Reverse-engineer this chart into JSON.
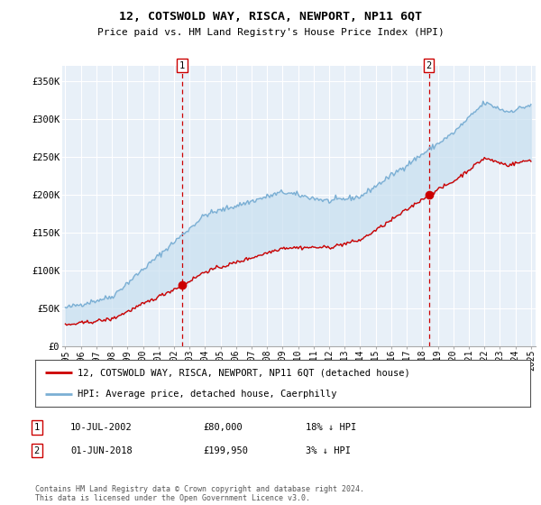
{
  "title": "12, COTSWOLD WAY, RISCA, NEWPORT, NP11 6QT",
  "subtitle": "Price paid vs. HM Land Registry's House Price Index (HPI)",
  "ylabel_ticks": [
    "£0",
    "£50K",
    "£100K",
    "£150K",
    "£200K",
    "£250K",
    "£300K",
    "£350K"
  ],
  "ytick_values": [
    0,
    50000,
    100000,
    150000,
    200000,
    250000,
    300000,
    350000
  ],
  "ylim": [
    0,
    370000
  ],
  "sale1": {
    "date_num": 2002.53,
    "price": 80000,
    "label": "1"
  },
  "sale2": {
    "date_num": 2018.42,
    "price": 199950,
    "label": "2"
  },
  "legend_entries": [
    "12, COTSWOLD WAY, RISCA, NEWPORT, NP11 6QT (detached house)",
    "HPI: Average price, detached house, Caerphilly"
  ],
  "table_rows": [
    {
      "num": "1",
      "date": "10-JUL-2002",
      "price": "£80,000",
      "hpi": "18% ↓ HPI"
    },
    {
      "num": "2",
      "date": "01-JUN-2018",
      "price": "£199,950",
      "hpi": "3% ↓ HPI"
    }
  ],
  "footer": "Contains HM Land Registry data © Crown copyright and database right 2024.\nThis data is licensed under the Open Government Licence v3.0.",
  "hpi_color": "#7bafd4",
  "price_color": "#cc0000",
  "fill_color": "#ddeeff",
  "dashed_color": "#cc0000",
  "background_color": "#ffffff",
  "grid_color": "#cccccc"
}
